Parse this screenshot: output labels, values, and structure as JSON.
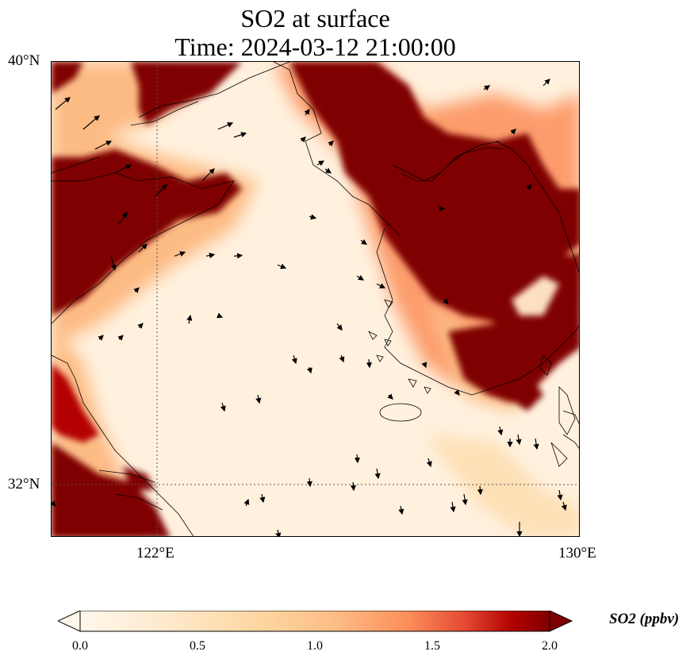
{
  "title": {
    "line1": "SO2 at surface",
    "line2": "Time: 2024-03-12 21:00:00"
  },
  "map": {
    "lat_range": [
      31.0,
      40.0
    ],
    "lon_range": [
      120.0,
      130.0
    ],
    "y_tick_labels": [
      "40°N",
      "32°N"
    ],
    "x_tick_labels": [
      "122°E",
      "130°E"
    ],
    "gridlines": {
      "lat": 32,
      "lon": 122,
      "style": "dotted"
    },
    "colormap": "OrRd",
    "high_value_regions": [
      "Korean peninsula west and central",
      "North Korea / Liaoning coast",
      "Shandong peninsula",
      "Jiangsu coast near 31-32°N",
      "Southern Korea near Busan",
      "Northwest corner near Bohai"
    ],
    "wind_field": "arrow vectors showing surface wind direction"
  },
  "colorbar": {
    "label": "SO2 (ppbv)",
    "ticks": [
      "0.0",
      "0.5",
      "1.0",
      "1.5",
      "2.0"
    ],
    "min": 0.0,
    "max": 2.0,
    "extend": "both",
    "colors": [
      "#fff7ec",
      "#fdd49e",
      "#fc8d59",
      "#d7301f",
      "#7f0000"
    ]
  }
}
